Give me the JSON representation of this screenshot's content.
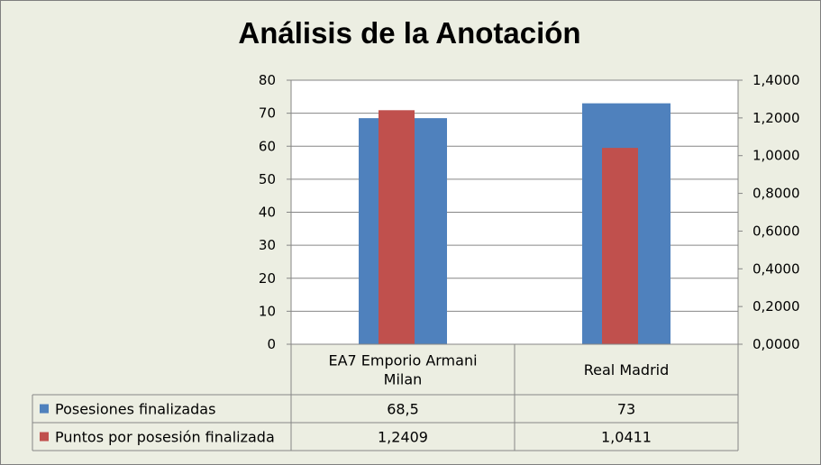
{
  "chart_data": {
    "type": "bar",
    "title": "Análisis de la Anotación",
    "categories": [
      "EA7 Emporio Armani Milan",
      "Real Madrid"
    ],
    "category_lines": [
      [
        "EA7 Emporio Armani",
        "Milan"
      ],
      [
        "Real Madrid"
      ]
    ],
    "series": [
      {
        "name": "Posesiones finalizadas",
        "axis": "left",
        "color": "#4f81bd",
        "values": [
          68.5,
          73
        ],
        "labels": [
          "68,5",
          "73"
        ]
      },
      {
        "name": "Puntos por posesión finalizada",
        "axis": "right",
        "color": "#c0504d",
        "values": [
          1.2409,
          1.0411
        ],
        "labels": [
          "1,2409",
          "1,0411"
        ]
      }
    ],
    "left_axis": {
      "min": 0,
      "max": 80,
      "step": 10,
      "ticks": [
        "0",
        "10",
        "20",
        "30",
        "40",
        "50",
        "60",
        "70",
        "80"
      ]
    },
    "right_axis": {
      "min": 0,
      "max": 1.4,
      "step": 0.2,
      "ticks": [
        "0,0000",
        "0,2000",
        "0,4000",
        "0,6000",
        "0,8000",
        "1,0000",
        "1,2000",
        "1,4000"
      ]
    },
    "gridlines": true,
    "legend": "data table below plot"
  }
}
